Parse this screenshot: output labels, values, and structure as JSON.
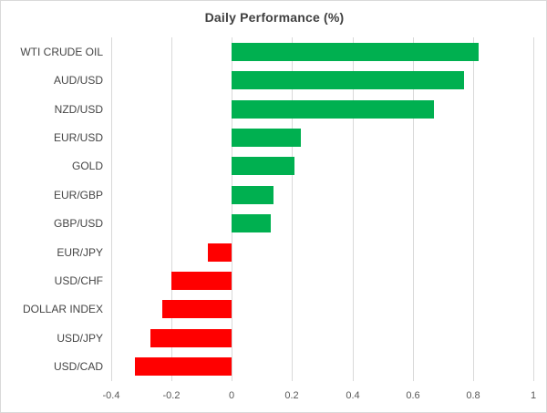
{
  "chart": {
    "title": "Daily Performance (%)",
    "positive_color": "#00B050",
    "negative_color": "#FF0000",
    "gridline_color": "#D9D9D9",
    "border_color": "#D9D9D9",
    "title_color": "#404040",
    "axis_label_color": "#595959"
  },
  "chart_data": {
    "type": "bar",
    "orientation": "horizontal",
    "title": "Daily Performance (%)",
    "xlabel": "",
    "ylabel": "",
    "categories": [
      "WTI CRUDE OIL",
      "AUD/USD",
      "NZD/USD",
      "EUR/USD",
      "GOLD",
      "EUR/GBP",
      "GBP/USD",
      "EUR/JPY",
      "USD/CHF",
      "DOLLAR INDEX",
      "USD/JPY",
      "USD/CAD"
    ],
    "values": [
      0.82,
      0.77,
      0.67,
      0.23,
      0.21,
      0.14,
      0.13,
      -0.08,
      -0.2,
      -0.23,
      -0.27,
      -0.32
    ],
    "xlim": [
      -0.4,
      1
    ],
    "xticks": [
      -0.4,
      -0.2,
      0,
      0.2,
      0.4,
      0.6,
      0.8,
      1
    ],
    "xtick_labels": [
      "-0.4",
      "-0.2",
      "0",
      "0.2",
      "0.4",
      "0.6",
      "0.8",
      "1"
    ],
    "grid": true,
    "legend": false
  }
}
